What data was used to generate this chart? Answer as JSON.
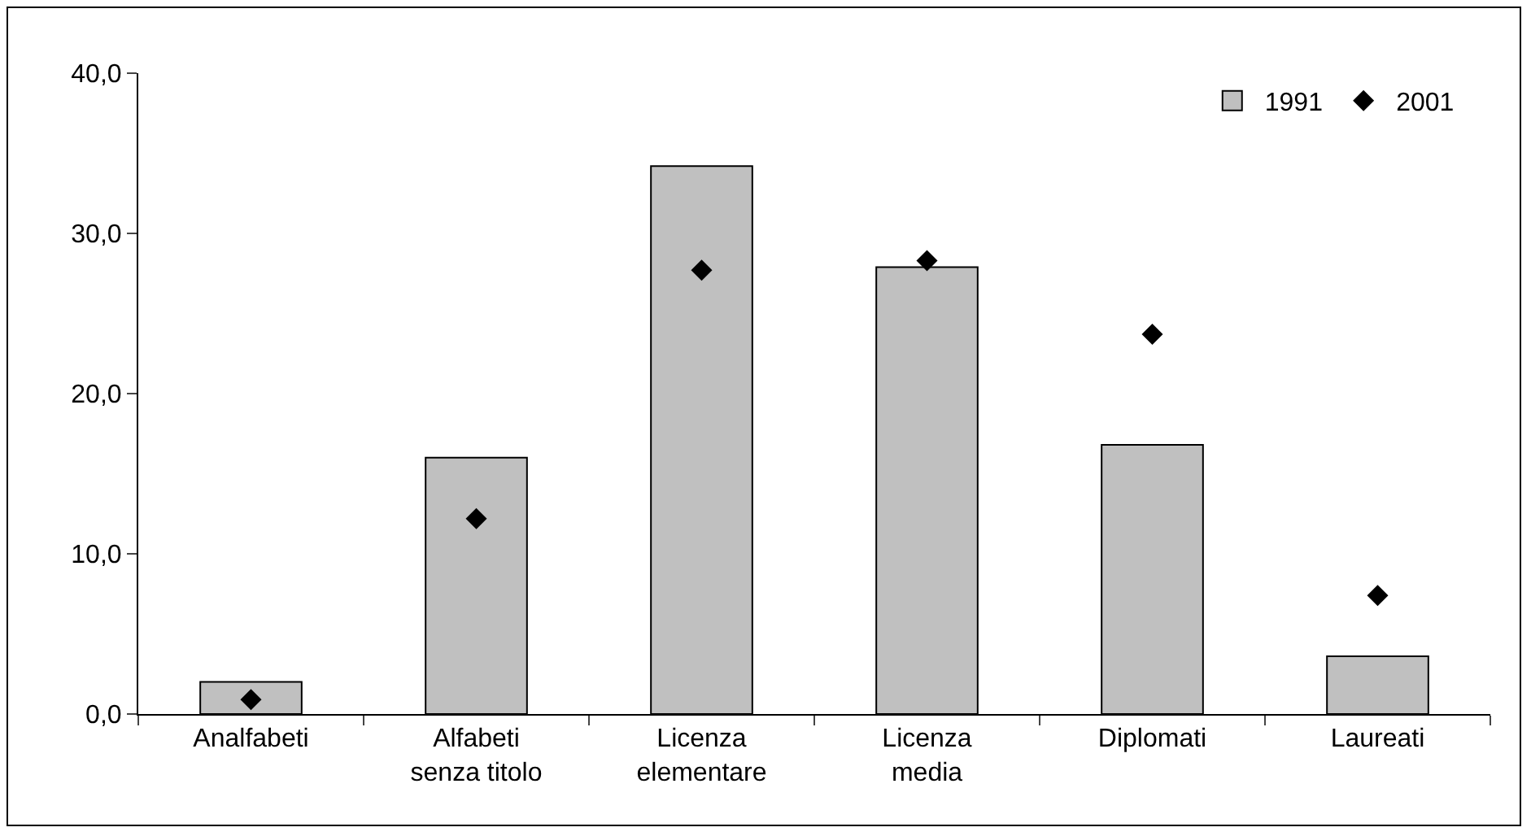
{
  "chart_data": {
    "type": "bar",
    "categories": [
      "Analfabeti",
      "Alfabeti senza titolo",
      "Licenza elementare",
      "Licenza media",
      "Diplomati",
      "Laureati"
    ],
    "series": [
      {
        "name": "1991",
        "color": "#c0c0c0",
        "values": [
          2.0,
          16.0,
          34.2,
          27.9,
          16.8,
          3.6
        ]
      },
      {
        "name": "2001",
        "type": "scatter",
        "color": "#000000",
        "marker": "diamond",
        "values": [
          0.9,
          12.2,
          27.7,
          28.3,
          23.7,
          7.4
        ]
      }
    ],
    "ylim": [
      0,
      40
    ],
    "yticks": [
      {
        "value": 0,
        "label": "0,0"
      },
      {
        "value": 10,
        "label": "10,0"
      },
      {
        "value": 20,
        "label": "20,0"
      },
      {
        "value": 30,
        "label": "30,0"
      },
      {
        "value": 40,
        "label": "40,0"
      }
    ],
    "grid": false,
    "legend": "top right"
  }
}
